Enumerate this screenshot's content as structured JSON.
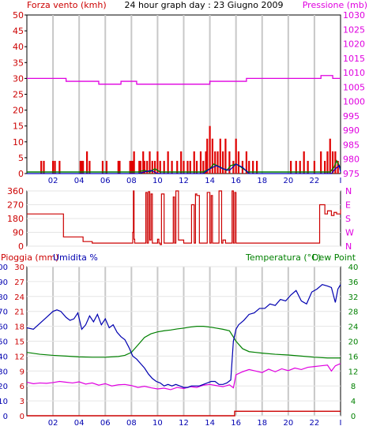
{
  "header": {
    "title": "24 hour graph day : 23 Giugno 2009",
    "left_label": "Forza vento (kmh)",
    "right_label": "Pressione (mb)"
  },
  "time_axis": {
    "ticks": [
      "02",
      "04",
      "06",
      "08",
      "10",
      "12",
      "14",
      "16",
      "18",
      "20",
      "22",
      "I"
    ],
    "range": [
      0,
      24
    ]
  },
  "colors": {
    "wind_bars": "#e00000",
    "wind_line": "#008000",
    "gust_line": "#0000c0",
    "pressure": "#e000e0",
    "direction": "#cc0000",
    "rain": "#cc0000",
    "humidity": "#0000b0",
    "temperature": "#008000",
    "dewpoint": "#e000e0",
    "grid": "#c8c8c8"
  },
  "chart_data": [
    {
      "type": "bar",
      "panel": "wind",
      "left_axis": {
        "label": "Forza vento (kmh)",
        "ticks": [
          0,
          5,
          10,
          15,
          20,
          25,
          30,
          35,
          40,
          45,
          50
        ],
        "ylim": [
          0,
          50
        ]
      },
      "right_axis": {
        "label": "Pressione (mb)",
        "ticks": [
          975,
          980,
          985,
          990,
          995,
          1000,
          1005,
          1010,
          1015,
          1020,
          1025,
          1030
        ],
        "ylim": [
          975,
          1030
        ]
      },
      "series": [
        {
          "name": "Forza vento (kmh)",
          "kind": "bars",
          "axis": "left",
          "x": [
            1.1,
            1.3,
            2.0,
            2.15,
            2.5,
            4.1,
            4.2,
            4.3,
            4.6,
            4.8,
            5.8,
            6.1,
            7.0,
            7.1,
            7.9,
            8.0,
            8.1,
            8.2,
            8.6,
            8.7,
            8.9,
            9.0,
            9.2,
            9.4,
            9.6,
            9.8,
            10.0,
            10.2,
            10.5,
            10.8,
            11.1,
            11.5,
            11.8,
            12.0,
            12.3,
            12.5,
            12.8,
            13.0,
            13.3,
            13.5,
            13.7,
            13.8,
            14.0,
            14.2,
            14.4,
            14.6,
            14.8,
            15.0,
            15.2,
            15.5,
            15.8,
            16.0,
            16.2,
            16.5,
            16.8,
            17.0,
            17.3,
            17.6,
            20.2,
            20.6,
            20.9,
            21.2,
            21.5,
            22.0,
            22.5,
            22.8,
            23.0,
            23.2,
            23.4,
            23.6,
            23.8
          ],
          "values": [
            4,
            4,
            4,
            4,
            4,
            4,
            4,
            4,
            7,
            4,
            4,
            4,
            4,
            4,
            4,
            4,
            4,
            7,
            4,
            4,
            7,
            4,
            4,
            7,
            4,
            4,
            7,
            4,
            4,
            7,
            4,
            4,
            7,
            4,
            4,
            4,
            7,
            4,
            7,
            4,
            7,
            11,
            15,
            11,
            7,
            7,
            11,
            7,
            11,
            7,
            4,
            11,
            7,
            4,
            7,
            4,
            4,
            4,
            4,
            4,
            4,
            7,
            4,
            4,
            7,
            4,
            7,
            11,
            7,
            7,
            4
          ]
        },
        {
          "name": "",
          "kind": "line",
          "axis": "left",
          "x": [
            0,
            8.5,
            9.0,
            9.4,
            9.8,
            10.2,
            13.5,
            14.0,
            14.3,
            14.8,
            15.3,
            15.6,
            16.0,
            16.4,
            16.9,
            17.5,
            23.2,
            23.5,
            23.7,
            23.9,
            24.0
          ],
          "values": [
            0.5,
            0.5,
            1.0,
            0.5,
            1.5,
            0.5,
            0.5,
            1.5,
            3.0,
            2.0,
            1.0,
            2.5,
            3.0,
            2.0,
            0.5,
            0.5,
            0.5,
            2.0,
            4.0,
            2.5,
            1.0
          ]
        },
        {
          "name": "",
          "kind": "line",
          "axis": "left",
          "x": [
            0,
            8.5,
            9.0,
            9.5,
            10.0,
            13.5,
            14.0,
            14.5,
            15.0,
            15.5,
            16.0,
            16.5,
            17.0,
            23.3,
            23.6,
            23.9,
            24.0
          ],
          "values": [
            0,
            0,
            0.5,
            1.0,
            0,
            0,
            1.5,
            2.5,
            1.5,
            1.0,
            3.0,
            2.0,
            0,
            0,
            1.5,
            2.5,
            0.5
          ]
        },
        {
          "name": "Pressione (mb)",
          "kind": "line",
          "axis": "right",
          "x": [
            0,
            2.5,
            3.0,
            3.6,
            4.4,
            5.5,
            6.5,
            7.2,
            8.0,
            8.4,
            10.0,
            12.0,
            14.0,
            15.0,
            16.0,
            16.8,
            17.4,
            18.0,
            20.0,
            22.0,
            22.5,
            23.0,
            23.4,
            24.0
          ],
          "values": [
            1008,
            1008,
            1007,
            1007,
            1007,
            1006,
            1006,
            1007,
            1007,
            1006,
            1006,
            1006,
            1007,
            1007,
            1007,
            1008,
            1008,
            1008,
            1008,
            1008,
            1009,
            1009,
            1008,
            1008
          ]
        }
      ]
    },
    {
      "type": "line",
      "panel": "direction",
      "left_axis": {
        "ticks": [
          0,
          90,
          180,
          270,
          360
        ],
        "ylim": [
          0,
          360
        ]
      },
      "right_axis": {
        "ticks": [
          "N",
          "W",
          "S",
          "E",
          "N"
        ]
      },
      "series": [
        {
          "name": "",
          "x": [
            0,
            2.3,
            2.8,
            4.0,
            4.3,
            5.0,
            8.0,
            8.1,
            8.15,
            8.2,
            8.25,
            8.35,
            8.7,
            9.0,
            9.1,
            9.2,
            9.3,
            9.4,
            9.5,
            9.6,
            9.8,
            10.0,
            10.1,
            10.2,
            10.3,
            10.5,
            10.7,
            11.0,
            11.2,
            11.3,
            11.4,
            11.6,
            11.8,
            12.0,
            12.4,
            12.6,
            12.8,
            12.9,
            13.0,
            13.2,
            13.6,
            13.8,
            14.0,
            14.1,
            14.2,
            14.5,
            14.7,
            14.9,
            15.0,
            15.2,
            15.5,
            15.7,
            15.8,
            15.9,
            16.0,
            16.2,
            16.5,
            17.0,
            20.0,
            22.2,
            22.4,
            22.8,
            23.0,
            23.3,
            23.5,
            23.7,
            24.0
          ],
          "values": [
            210,
            210,
            60,
            60,
            30,
            20,
            20,
            90,
            360,
            45,
            20,
            20,
            20,
            20,
            350,
            20,
            355,
            40,
            340,
            20,
            20,
            45,
            20,
            10,
            340,
            20,
            20,
            20,
            320,
            20,
            360,
            40,
            40,
            20,
            20,
            270,
            20,
            340,
            330,
            20,
            20,
            350,
            20,
            330,
            20,
            20,
            360,
            20,
            40,
            20,
            20,
            360,
            20,
            350,
            20,
            20,
            20,
            20,
            20,
            20,
            270,
            210,
            230,
            200,
            220,
            210,
            240
          ]
        }
      ]
    },
    {
      "type": "line",
      "panel": "weather",
      "left_label_rain": "Pioggia (mm)",
      "left_label_humidity": "Umidita %",
      "right_label_temp": "Temperatura (°C)",
      "right_label_dew": "Dew Point",
      "rain_axis": {
        "ticks": [
          0,
          3,
          6,
          9,
          12,
          15,
          18,
          21,
          24,
          27,
          30
        ],
        "ylim": [
          0,
          30
        ]
      },
      "humidity_axis": {
        "ticks": [
          0,
          10,
          20,
          30,
          40,
          50,
          60,
          70,
          80,
          90,
          100
        ],
        "ylim": [
          0,
          100
        ]
      },
      "temp_axis": {
        "ticks": [
          0,
          4,
          8,
          12,
          16,
          20,
          24,
          28,
          32,
          36,
          40
        ],
        "ylim": [
          0,
          40
        ]
      },
      "series": [
        {
          "name": "Pioggia (mm)",
          "axis": "rain",
          "x": [
            0,
            15.8,
            15.9,
            24.0
          ],
          "values": [
            0,
            0,
            0.9,
            0.9
          ]
        },
        {
          "name": "Umidita %",
          "axis": "humidity",
          "x": [
            0,
            0.5,
            1.0,
            1.5,
            2.0,
            2.3,
            2.6,
            3.0,
            3.3,
            3.6,
            3.9,
            4.2,
            4.5,
            4.8,
            5.1,
            5.4,
            5.7,
            6.0,
            6.3,
            6.6,
            6.9,
            7.2,
            7.5,
            7.8,
            8.1,
            8.4,
            8.7,
            9.0,
            9.3,
            9.6,
            9.9,
            10.2,
            10.5,
            10.8,
            11.1,
            11.4,
            11.7,
            12.0,
            12.3,
            12.6,
            12.9,
            13.2,
            13.5,
            13.8,
            14.1,
            14.4,
            14.7,
            15.0,
            15.3,
            15.6,
            15.8,
            16.0,
            16.2,
            16.6,
            17.0,
            17.4,
            17.8,
            18.2,
            18.6,
            19.0,
            19.4,
            19.8,
            20.2,
            20.6,
            21.0,
            21.4,
            21.8,
            22.2,
            22.6,
            23.0,
            23.3,
            23.6,
            23.8,
            24.0
          ],
          "values": [
            59,
            58,
            62,
            66,
            70,
            71,
            70,
            66,
            64,
            65,
            69,
            58,
            61,
            67,
            63,
            68,
            61,
            65,
            59,
            61,
            56,
            53,
            51,
            46,
            40,
            38,
            35,
            32,
            28,
            25,
            23,
            22,
            20,
            21,
            20,
            21,
            20,
            19,
            19,
            20,
            20,
            20,
            21,
            22,
            23,
            23,
            21,
            21,
            22,
            24,
            50,
            58,
            61,
            64,
            68,
            69,
            72,
            72,
            75,
            74,
            78,
            77,
            81,
            84,
            77,
            75,
            83,
            85,
            88,
            87,
            86,
            76,
            85,
            88
          ]
        },
        {
          "name": "Temperatura (°C)",
          "axis": "temp",
          "x": [
            0,
            1.0,
            2.0,
            3.0,
            4.0,
            5.0,
            6.0,
            7.0,
            7.5,
            8.0,
            8.5,
            9.0,
            9.5,
            10.0,
            10.5,
            11.0,
            11.5,
            12.0,
            12.5,
            13.0,
            13.5,
            14.0,
            14.5,
            15.0,
            15.5,
            16.0,
            16.5,
            17.0,
            17.5,
            18.0,
            19.0,
            20.0,
            21.0,
            22.0,
            23.0,
            24.0
          ],
          "values": [
            17,
            16.5,
            16.2,
            16,
            15.8,
            15.7,
            15.7,
            15.9,
            16.2,
            17,
            19,
            21,
            22,
            22.5,
            22.8,
            23,
            23.3,
            23.5,
            23.8,
            24,
            24,
            23.8,
            23.5,
            23.2,
            22.8,
            20,
            18,
            17.2,
            17,
            16.8,
            16.5,
            16.3,
            16,
            15.7,
            15.5,
            15.5
          ]
        },
        {
          "name": "Dew Point",
          "axis": "temp",
          "x": [
            0,
            0.5,
            1.0,
            1.5,
            2.0,
            2.5,
            3.0,
            3.5,
            4.0,
            4.5,
            5.0,
            5.5,
            6.0,
            6.5,
            7.0,
            7.5,
            8.0,
            8.5,
            9.0,
            9.5,
            10.0,
            10.5,
            11.0,
            11.5,
            12.0,
            12.5,
            13.0,
            13.5,
            14.0,
            14.5,
            15.0,
            15.5,
            15.8,
            16.0,
            16.5,
            17.0,
            17.5,
            18.0,
            18.5,
            19.0,
            19.5,
            20.0,
            20.5,
            21.0,
            21.5,
            22.0,
            22.5,
            23.0,
            23.3,
            23.6,
            24.0
          ],
          "values": [
            9,
            8.6,
            8.8,
            8.7,
            8.9,
            9.2,
            9,
            8.8,
            9.1,
            8.5,
            8.8,
            8.2,
            8.6,
            8,
            8.3,
            8.4,
            8.1,
            7.6,
            7.9,
            7.5,
            7.2,
            7.4,
            7,
            7.6,
            7.3,
            7.8,
            7.6,
            8.2,
            8.4,
            8.1,
            7.8,
            8.3,
            7.5,
            11,
            11.8,
            12.4,
            12,
            11.6,
            12.5,
            11.8,
            12.6,
            12.1,
            12.8,
            12.4,
            13,
            13.2,
            13.4,
            13.6,
            12,
            13.4,
            14
          ]
        }
      ]
    }
  ]
}
